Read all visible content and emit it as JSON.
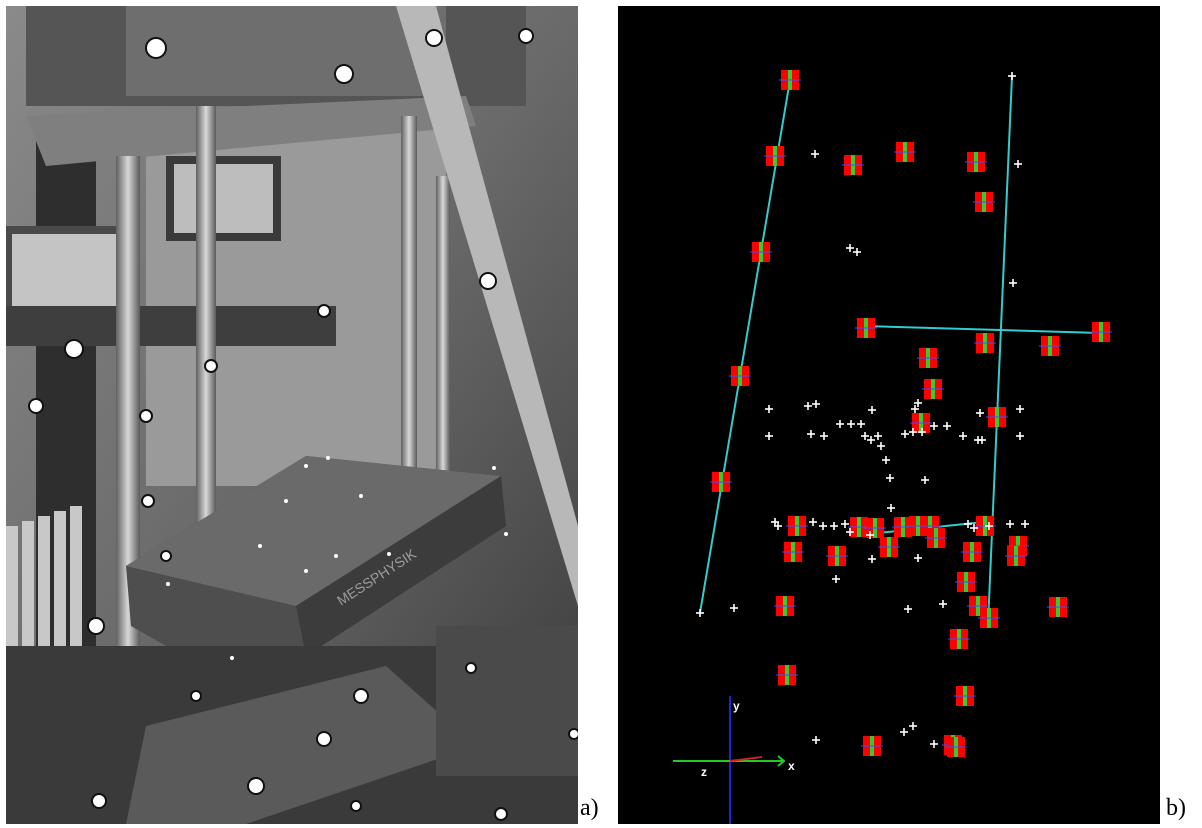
{
  "captions": {
    "a": "a)",
    "b": "b)"
  },
  "photo_panel": {
    "description_icon": "photo-of-test-rig-with-coded-targets",
    "marker_label": "MESSPHYSIK"
  },
  "plot_panel": {
    "background": "#000000",
    "target_color": "#ff0000",
    "target_inner_color": "#33cc33",
    "line_color": "#33cccc",
    "point_color": "#ffffff",
    "axes": {
      "y": "y",
      "x": "x",
      "z": "z"
    },
    "colors": {
      "x_axis": "#22cc22",
      "y_axis": "#2222dd",
      "z_axis": "#cc2222"
    }
  }
}
